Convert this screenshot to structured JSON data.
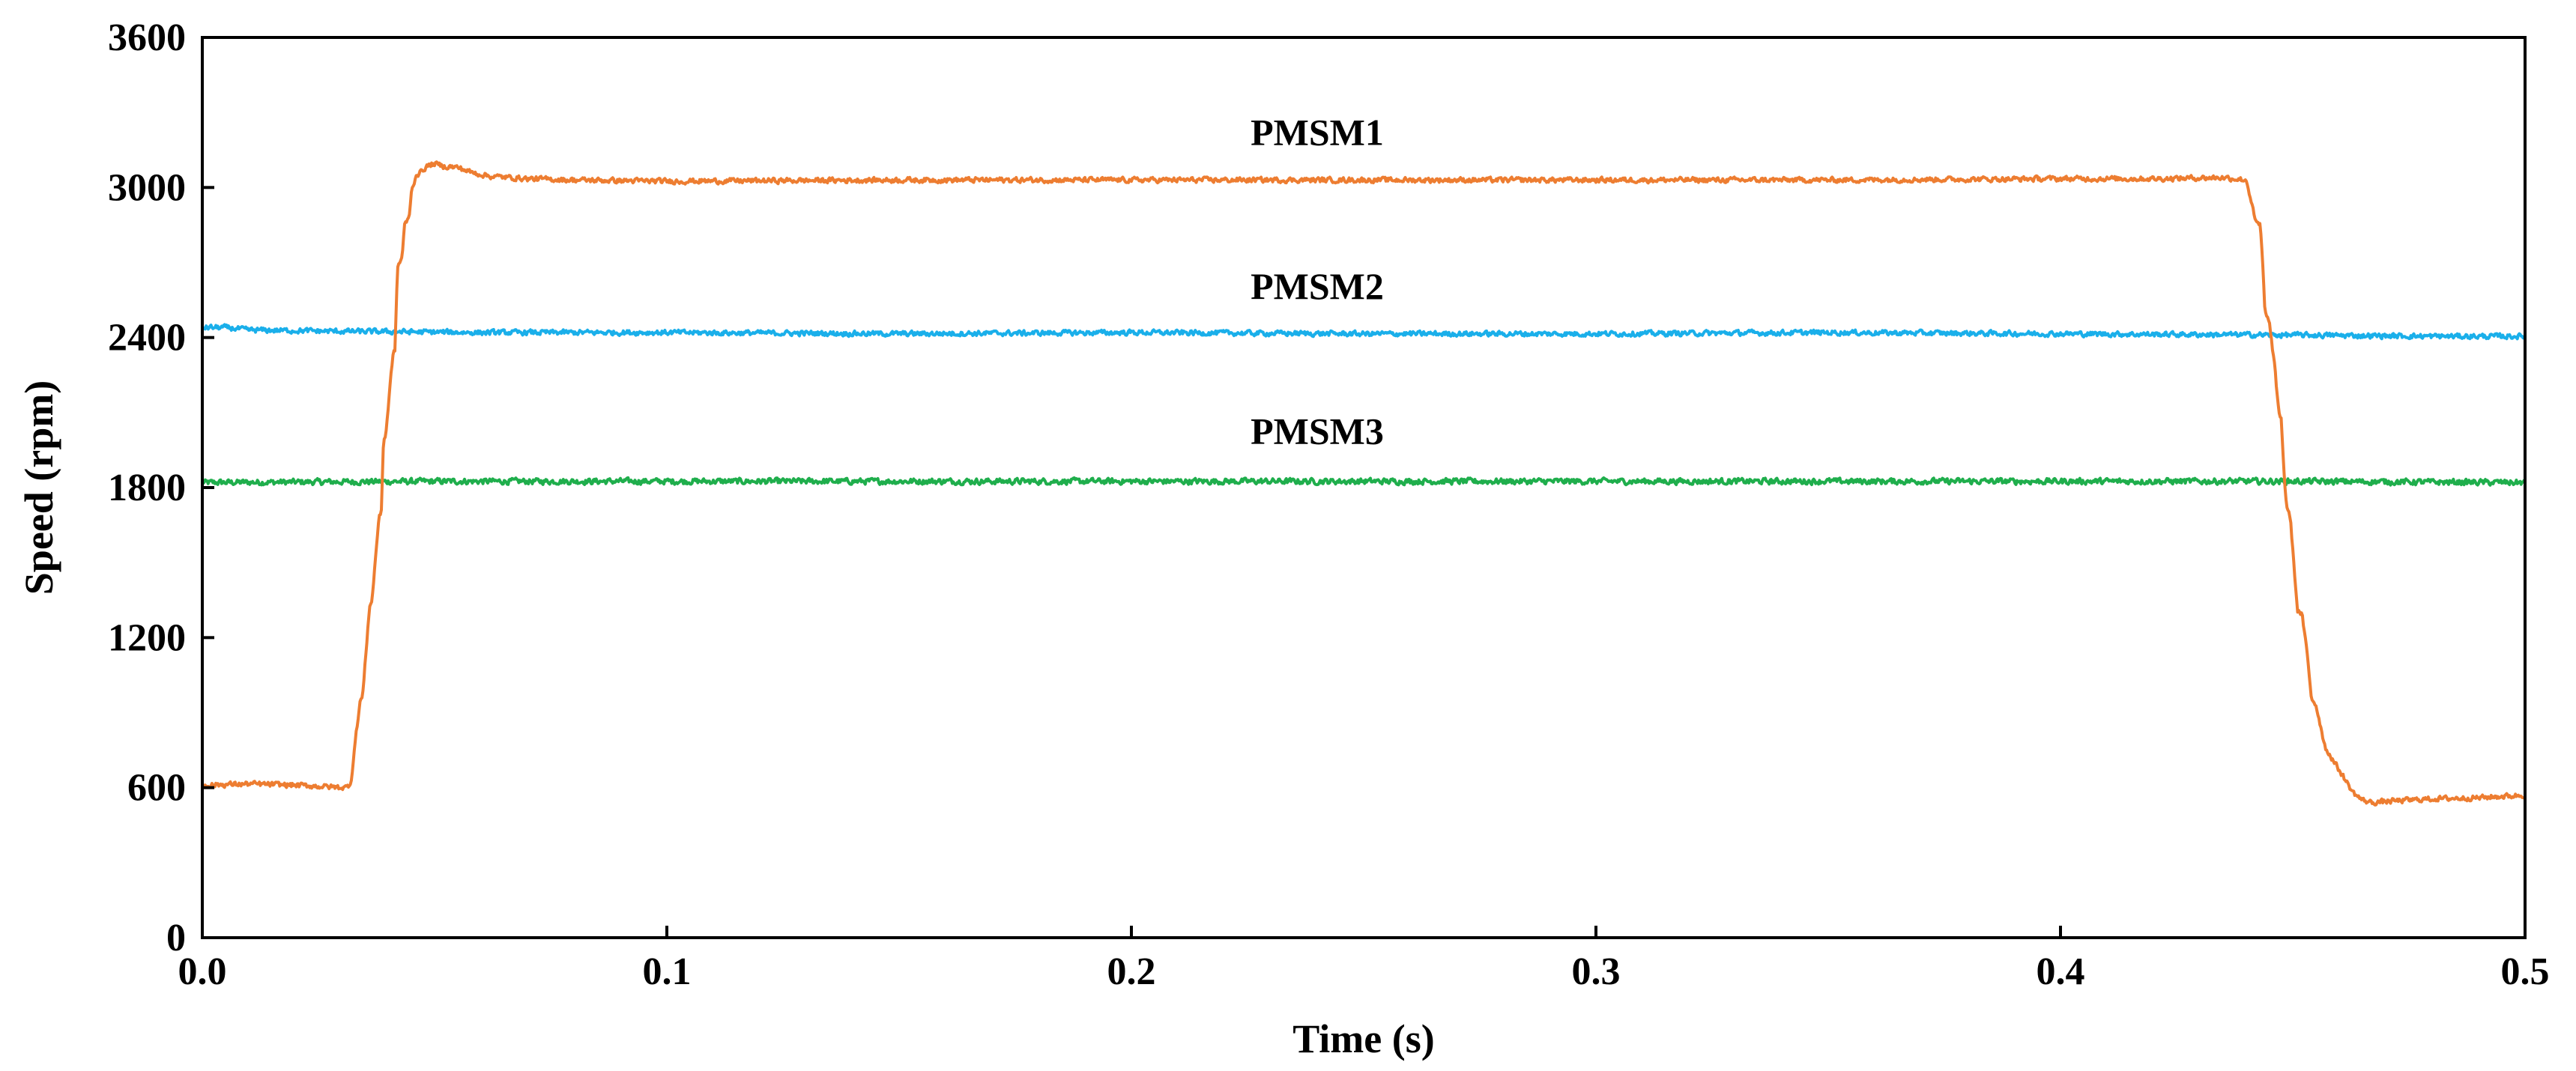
{
  "chart_data": {
    "type": "line",
    "title": "",
    "xlabel": "Time (s)",
    "ylabel": "Speed (rpm)",
    "xlim": [
      0.0,
      0.5
    ],
    "ylim": [
      0,
      3600
    ],
    "grid": false,
    "xticks": [
      0.0,
      0.1,
      0.2,
      0.3,
      0.4,
      0.5
    ],
    "xtick_labels": [
      "0.0",
      "0.1",
      "0.2",
      "0.3",
      "0.4",
      "0.5"
    ],
    "yticks": [
      0,
      600,
      1200,
      1800,
      2400,
      3000,
      3600
    ],
    "ytick_labels": [
      "0",
      "600",
      "1200",
      "1800",
      "2400",
      "3000",
      "3600"
    ],
    "series": [
      {
        "name": "PMSM1",
        "color": "#ED7D31",
        "x": [
          0.0,
          0.01,
          0.02,
          0.031,
          0.032,
          0.033,
          0.034,
          0.0345,
          0.036,
          0.0365,
          0.038,
          0.0385,
          0.039,
          0.0395,
          0.041,
          0.0415,
          0.042,
          0.0425,
          0.043,
          0.0435,
          0.044,
          0.0445,
          0.045,
          0.046,
          0.047,
          0.048,
          0.049,
          0.05,
          0.052,
          0.055,
          0.058,
          0.062,
          0.066,
          0.07,
          0.08,
          0.1,
          0.15,
          0.2,
          0.25,
          0.3,
          0.35,
          0.4,
          0.42,
          0.435,
          0.44,
          0.441,
          0.442,
          0.443,
          0.4435,
          0.444,
          0.4445,
          0.445,
          0.446,
          0.447,
          0.4475,
          0.448,
          0.4485,
          0.449,
          0.4495,
          0.45,
          0.451,
          0.452,
          0.453,
          0.454,
          0.455,
          0.457,
          0.459,
          0.461,
          0.463,
          0.465,
          0.467,
          0.47,
          0.48,
          0.49,
          0.5
        ],
        "values": [
          610,
          615,
          610,
          600,
          620,
          800,
          950,
          960,
          1330,
          1340,
          1680,
          1690,
          1990,
          2010,
          2330,
          2350,
          2680,
          2700,
          2720,
          2850,
          2860,
          2880,
          2980,
          3050,
          3060,
          3080,
          3090,
          3095,
          3085,
          3080,
          3060,
          3045,
          3040,
          3035,
          3030,
          3025,
          3030,
          3030,
          3030,
          3030,
          3030,
          3035,
          3035,
          3040,
          3030,
          2950,
          2860,
          2850,
          2700,
          2500,
          2490,
          2450,
          2300,
          2100,
          2080,
          1900,
          1750,
          1700,
          1680,
          1550,
          1310,
          1290,
          1150,
          960,
          930,
          760,
          700,
          640,
          580,
          550,
          540,
          545,
          555,
          560,
          570
        ]
      },
      {
        "name": "PMSM2",
        "color": "#1AAFEA",
        "x": [
          0.0,
          0.005,
          0.01,
          0.03,
          0.06,
          0.1,
          0.15,
          0.2,
          0.25,
          0.3,
          0.35,
          0.4,
          0.45,
          0.48,
          0.5
        ],
        "values": [
          2440,
          2440,
          2430,
          2425,
          2420,
          2420,
          2415,
          2420,
          2415,
          2415,
          2420,
          2415,
          2410,
          2405,
          2405
        ]
      },
      {
        "name": "PMSM3",
        "color": "#1FAE4C",
        "x": [
          0.0,
          0.05,
          0.1,
          0.15,
          0.2,
          0.25,
          0.3,
          0.35,
          0.4,
          0.45,
          0.5
        ],
        "values": [
          1820,
          1825,
          1825,
          1825,
          1825,
          1825,
          1825,
          1825,
          1825,
          1825,
          1820
        ]
      }
    ],
    "annotations": [
      {
        "text": "PMSM1",
        "x": 0.24,
        "y": 3170
      },
      {
        "text": "PMSM2",
        "x": 0.24,
        "y": 2555
      },
      {
        "text": "PMSM3",
        "x": 0.24,
        "y": 1975
      }
    ]
  }
}
